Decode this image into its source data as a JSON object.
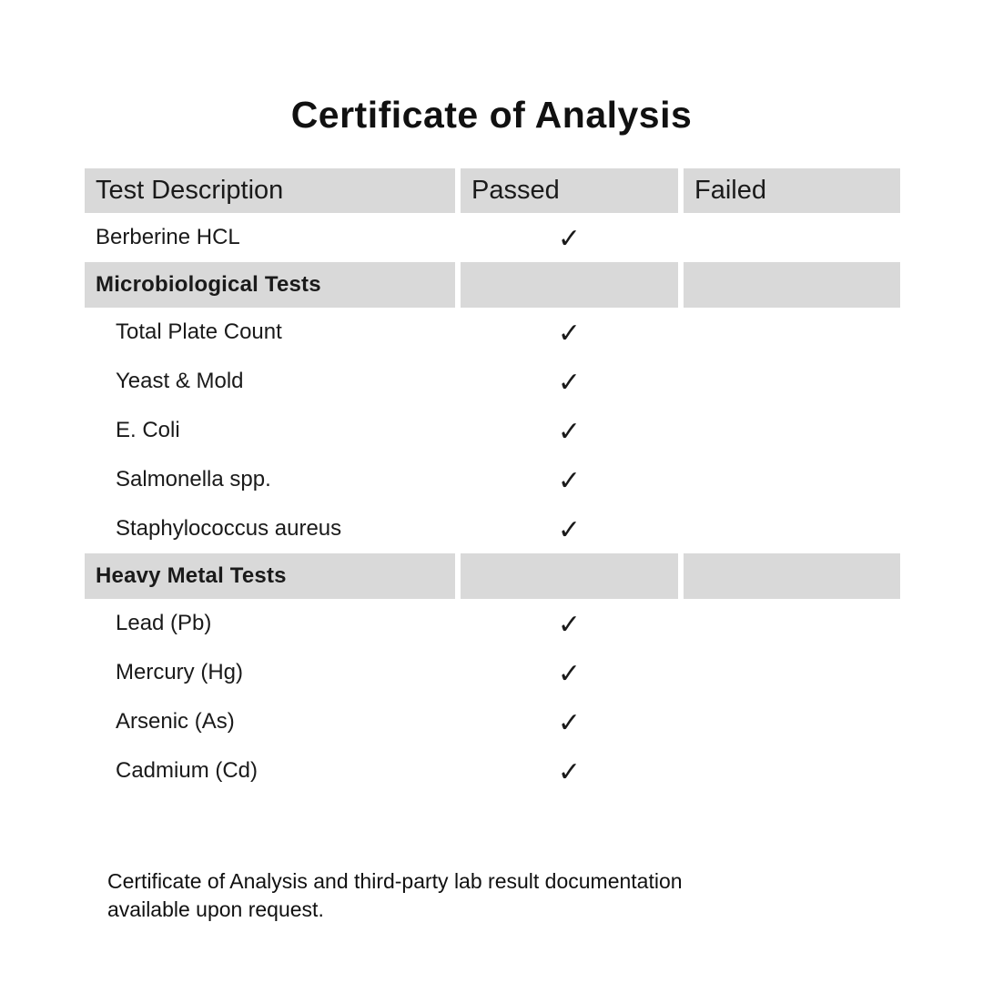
{
  "title": "Certificate of Analysis",
  "table": {
    "columns": [
      "Test Description",
      "Passed",
      "Failed"
    ],
    "check_glyph": "✓",
    "section_bg": "#d9d9d9",
    "rows": [
      {
        "type": "item",
        "label": "Berberine HCL",
        "indent": false,
        "passed": true,
        "failed": false
      },
      {
        "type": "section",
        "label": "Microbiological Tests",
        "indent": false,
        "passed": false,
        "failed": false
      },
      {
        "type": "item",
        "label": "Total Plate Count",
        "indent": true,
        "passed": true,
        "failed": false
      },
      {
        "type": "item",
        "label": "Yeast & Mold",
        "indent": true,
        "passed": true,
        "failed": false
      },
      {
        "type": "item",
        "label": "E. Coli",
        "indent": true,
        "passed": true,
        "failed": false
      },
      {
        "type": "item",
        "label": "Salmonella spp.",
        "indent": true,
        "passed": true,
        "failed": false
      },
      {
        "type": "item",
        "label": "Staphylococcus aureus",
        "indent": true,
        "passed": true,
        "failed": false
      },
      {
        "type": "section",
        "label": "Heavy Metal Tests",
        "indent": false,
        "passed": false,
        "failed": false
      },
      {
        "type": "item",
        "label": "Lead (Pb)",
        "indent": true,
        "passed": true,
        "failed": false
      },
      {
        "type": "item",
        "label": "Mercury (Hg)",
        "indent": true,
        "passed": true,
        "failed": false
      },
      {
        "type": "item",
        "label": "Arsenic (As)",
        "indent": true,
        "passed": true,
        "failed": false
      },
      {
        "type": "item",
        "label": "Cadmium (Cd)",
        "indent": true,
        "passed": true,
        "failed": false
      }
    ]
  },
  "footer": "Certificate of Analysis and third-party lab result documentation available upon request."
}
